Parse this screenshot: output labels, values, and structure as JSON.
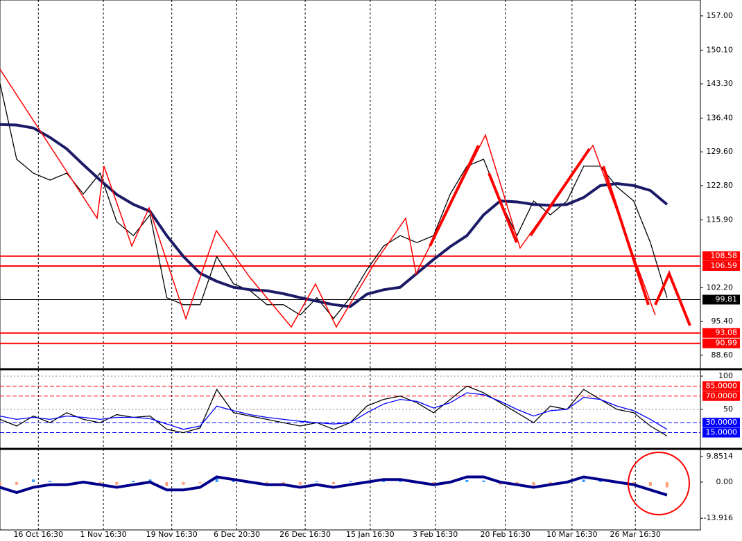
{
  "chart_data": [
    {
      "type": "line",
      "x": [
        0,
        5,
        10,
        15,
        20,
        25,
        30,
        35,
        40,
        45,
        50,
        55,
        60,
        65,
        70,
        75,
        80,
        85,
        90,
        95,
        100,
        105,
        110,
        115,
        120,
        125,
        130,
        135,
        140,
        145,
        150,
        155,
        160,
        165,
        170,
        175,
        180,
        185,
        190,
        195,
        200
      ],
      "series": [
        {
          "color": "#000000",
          "values": [
            143.4,
            128.1,
            125.3,
            123.9,
            125.3,
            121.1,
            125.3,
            115.5,
            112.7,
            116.9,
            100.2,
            98.8,
            98.8,
            108.5,
            103.0,
            101.6,
            98.8,
            98.8,
            96.7,
            100.2,
            96.0,
            100.2,
            105.8,
            110.6,
            112.7,
            111.3,
            112.7,
            121.1,
            126.7,
            128.1,
            119.7,
            112.7,
            119.7,
            116.9,
            119.7,
            126.7,
            126.7,
            122.5,
            119.7,
            111.3,
            100.2
          ]
        },
        {
          "color": "#1a1a66",
          "values": [
            135.1,
            135.0,
            134.4,
            132.5,
            130.2,
            127.0,
            123.9,
            121.0,
            119.0,
            117.6,
            112.7,
            108.5,
            105.1,
            103.5,
            102.3,
            101.8,
            101.6,
            101.0,
            100.2,
            99.5,
            98.8,
            98.4,
            100.9,
            101.8,
            102.3,
            105.1,
            107.9,
            110.5,
            112.7,
            116.9,
            119.7,
            119.5,
            119.0,
            118.8,
            119.0,
            120.4,
            122.8,
            123.2,
            122.8,
            121.8,
            119.0
          ]
        }
      ],
      "xlim": [
        0,
        210
      ],
      "xticks": [
        {
          "value": 11.5,
          "label": "16 Oct 16:30"
        },
        {
          "value": 31,
          "label": "1 Nov 16:30"
        },
        {
          "value": 51.5,
          "label": "19 Nov 16:30"
        },
        {
          "value": 71,
          "label": "6 Dec 20:30"
        },
        {
          "value": 91.5,
          "label": "26 Dec 16:30"
        },
        {
          "value": 111,
          "label": "15 Jan 16:30"
        },
        {
          "value": 130.5,
          "label": "3 Feb 16:30"
        },
        {
          "value": 151.5,
          "label": "20 Feb 16:30"
        },
        {
          "value": 171.5,
          "label": "10 Mar 16:30"
        },
        {
          "value": 190.5,
          "label": "26 Mar 16:30"
        }
      ],
      "ylim": [
        86.2,
        160.2
      ],
      "yticks": [
        {
          "value": 157,
          "label": "157.00"
        },
        {
          "value": 150.1,
          "label": "150.10"
        },
        {
          "value": 143.3,
          "label": "143.30"
        },
        {
          "value": 136.4,
          "label": "136.40"
        },
        {
          "value": 129.6,
          "label": "129.60"
        },
        {
          "value": 122.8,
          "label": "122.80"
        },
        {
          "value": 115.9,
          "label": "115.90"
        },
        {
          "value": 102.2,
          "label": "102.20"
        },
        {
          "value": 95.4,
          "label": "95.40"
        },
        {
          "value": 88.6,
          "label": "88.60"
        }
      ],
      "levels": [
        {
          "value": 108.58,
          "label": "108.58",
          "color": "#ff0000"
        },
        {
          "value": 106.59,
          "label": "106.59",
          "color": "#ff0000"
        },
        {
          "value": 93.08,
          "label": "93.08",
          "color": "#ff0000"
        },
        {
          "value": 90.99,
          "label": "90.99",
          "color": "#ff0000"
        },
        {
          "value": 99.81,
          "label": "99.81",
          "color": "#000000"
        }
      ]
    },
    {
      "type": "line",
      "x": [
        0,
        5,
        10,
        15,
        20,
        25,
        30,
        35,
        40,
        45,
        50,
        55,
        60,
        65,
        70,
        75,
        80,
        85,
        90,
        95,
        100,
        105,
        110,
        115,
        120,
        125,
        130,
        135,
        140,
        145,
        150,
        155,
        160,
        165,
        170,
        175,
        180,
        185,
        190,
        195,
        200
      ],
      "series": [
        {
          "color": "#000000",
          "values": [
            35,
            25,
            40,
            30,
            45,
            35,
            30,
            42,
            38,
            40,
            20,
            15,
            22,
            80,
            45,
            40,
            35,
            30,
            25,
            30,
            20,
            30,
            55,
            65,
            70,
            60,
            45,
            65,
            85,
            75,
            60,
            45,
            30,
            55,
            50,
            80,
            65,
            50,
            45,
            25,
            10
          ]
        },
        {
          "color": "#0000ff",
          "values": [
            40,
            35,
            38,
            35,
            40,
            38,
            35,
            38,
            38,
            36,
            28,
            20,
            25,
            55,
            48,
            42,
            38,
            35,
            32,
            30,
            28,
            30,
            45,
            58,
            65,
            62,
            52,
            60,
            75,
            72,
            62,
            50,
            40,
            48,
            50,
            68,
            65,
            55,
            48,
            35,
            20
          ]
        }
      ],
      "xlim": [
        0,
        210
      ],
      "ylim": [
        -6.3,
        108.3
      ],
      "yticks": [
        100,
        50
      ],
      "levels": [
        {
          "value": 85,
          "label": "85.0000",
          "color": "#ff0000"
        },
        {
          "value": 70,
          "label": "70.0000",
          "color": "#ff0000"
        },
        {
          "value": 30,
          "label": "30.0000",
          "color": "#0000ff"
        },
        {
          "value": 15,
          "label": "15.0000",
          "color": "#0000ff"
        }
      ]
    },
    {
      "type": "bar",
      "x": [
        0,
        5,
        10,
        15,
        20,
        25,
        30,
        35,
        40,
        45,
        50,
        55,
        60,
        65,
        70,
        75,
        80,
        85,
        90,
        95,
        100,
        105,
        110,
        115,
        120,
        125,
        130,
        135,
        140,
        145,
        150,
        155,
        160,
        165,
        170,
        175,
        180,
        185,
        190,
        195,
        200
      ],
      "values": [
        -1,
        -1,
        1,
        0.5,
        0,
        0.5,
        -0.5,
        -1,
        0.5,
        1,
        -1.5,
        -1,
        -0.5,
        2,
        1,
        0.3,
        -0.5,
        -0.5,
        -1,
        0.3,
        -0.8,
        0.3,
        0.5,
        0.8,
        0.6,
        0.2,
        -0.5,
        0.3,
        0.8,
        0.6,
        -1,
        -1.5,
        -1.2,
        -0.5,
        0.5,
        1,
        0.5,
        -0.5,
        -1,
        -1.5,
        -2
      ],
      "colors": [
        "#3399ff",
        "#ffa07a"
      ],
      "series": [
        {
          "color": "#00008b",
          "values": [
            -2,
            -4,
            -2,
            -1,
            -1,
            0,
            -1,
            -2,
            -1,
            0,
            -3,
            -3,
            -2,
            2,
            1,
            0,
            -1,
            -1,
            -2,
            -1,
            -2,
            -1,
            0,
            1,
            1,
            0,
            -1,
            0,
            2,
            2,
            0,
            -1,
            -2,
            -1,
            0,
            2,
            1,
            0,
            -1,
            -3,
            -5
          ]
        }
      ],
      "xlim": [
        0,
        210
      ],
      "ylim": [
        -18.4,
        12.25
      ],
      "yticks": [
        {
          "value": 9.8514,
          "label": "9.8514"
        },
        {
          "value": 0,
          "label": "0.00"
        },
        {
          "value": -13.916,
          "label": "-13.916"
        }
      ]
    }
  ]
}
